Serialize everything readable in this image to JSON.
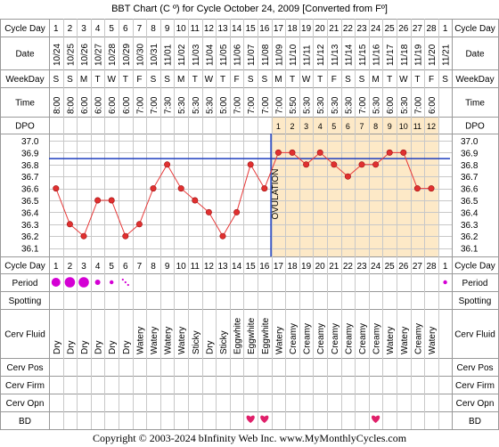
{
  "title": "BBT Chart (C º) for Cycle October 24, 2009  [Converted from Fº]",
  "footer": "Copyright © 2003-2024 bInfinity Web Inc.    www.MyMonthlyCycles.com",
  "labels": {
    "cycle_day": "Cycle Day",
    "date": "Date",
    "weekday": "WeekDay",
    "time": "Time",
    "dpo": "DPO",
    "period": "Period",
    "spotting": "Spotting",
    "cerv_fluid": "Cerv Fluid",
    "cerv_pos": "Cerv Pos",
    "cerv_firm": "Cerv Firm",
    "cerv_opn": "Cerv Opn",
    "bd": "BD",
    "ovulation": "OVULATION"
  },
  "colors": {
    "grid": "#c8c8c8",
    "line": "#e83a3a",
    "point_fill": "#e03030",
    "coverline": "#1f3fbf",
    "luteal_bg": "#fde9c7",
    "period": "#d400d4",
    "heart": "#e0206a"
  },
  "cycle_days": [
    "1",
    "2",
    "3",
    "4",
    "5",
    "6",
    "7",
    "8",
    "9",
    "10",
    "11",
    "12",
    "13",
    "14",
    "15",
    "16",
    "17",
    "18",
    "19",
    "20",
    "21",
    "22",
    "23",
    "24",
    "25",
    "26",
    "27",
    "28",
    "1"
  ],
  "dates": [
    "10/24",
    "10/25",
    "10/26",
    "10/27",
    "10/28",
    "10/29",
    "10/30",
    "10/31",
    "11/01",
    "11/02",
    "11/03",
    "11/04",
    "11/05",
    "11/06",
    "11/07",
    "11/08",
    "11/09",
    "11/10",
    "11/11",
    "11/12",
    "11/13",
    "11/14",
    "11/15",
    "11/16",
    "11/17",
    "11/18",
    "11/19",
    "11/20",
    "11/21"
  ],
  "weekdays": [
    "S",
    "S",
    "M",
    "T",
    "W",
    "T",
    "F",
    "S",
    "S",
    "M",
    "T",
    "W",
    "T",
    "F",
    "S",
    "S",
    "M",
    "T",
    "W",
    "T",
    "F",
    "S",
    "S",
    "M",
    "T",
    "W",
    "T",
    "F",
    "S"
  ],
  "times": [
    "8:00",
    "8:00",
    "6:00",
    "6:00",
    "6:00",
    "6:00",
    "7:00",
    "7:00",
    "7:30",
    "5:30",
    "5:30",
    "5:30",
    "5:00",
    "7:00",
    "7:00",
    "7:00",
    "7:00",
    "5:50",
    "5:30",
    "5:30",
    "5:30",
    "5:30",
    "7:00",
    "5:30",
    "6:00",
    "5:30",
    "7:00",
    "6:00",
    ""
  ],
  "dpo": [
    "",
    "",
    "",
    "",
    "",
    "",
    "",
    "",
    "",
    "",
    "",
    "",
    "",
    "",
    "",
    "",
    "1",
    "2",
    "3",
    "4",
    "5",
    "6",
    "7",
    "8",
    "9",
    "10",
    "11",
    "12",
    ""
  ],
  "cerv_fluid": [
    "Dry",
    "Dry",
    "Dry",
    "Dry",
    "Dry",
    "Dry",
    "Watery",
    "Watery",
    "Watery",
    "Watery",
    "Sticky",
    "Dry",
    "Sticky",
    "Eggwhite",
    "Eggwhite",
    "Eggwhite",
    "Watery",
    "Creamy",
    "Creamy",
    "Creamy",
    "Creamy",
    "Creamy",
    "Creamy",
    "Creamy",
    "Watery",
    "Watery",
    "Creamy",
    "Watery",
    ""
  ],
  "period": [
    3,
    4,
    4,
    2,
    1,
    0.5,
    0,
    0,
    0,
    0,
    0,
    0,
    0,
    0,
    0,
    0,
    0,
    0,
    0,
    0,
    0,
    0,
    0,
    0,
    0,
    0,
    0,
    0,
    1
  ],
  "bd": [
    0,
    0,
    0,
    0,
    0,
    0,
    0,
    0,
    0,
    0,
    0,
    0,
    0,
    0,
    1,
    1,
    0,
    0,
    0,
    0,
    0,
    0,
    0,
    1,
    0,
    0,
    0,
    0,
    0
  ],
  "chart_data": {
    "type": "line",
    "x": [
      "1",
      "2",
      "3",
      "4",
      "5",
      "6",
      "7",
      "8",
      "9",
      "10",
      "11",
      "12",
      "13",
      "14",
      "15",
      "16",
      "17",
      "18",
      "19",
      "20",
      "21",
      "22",
      "23",
      "24",
      "25",
      "26",
      "27",
      "28",
      "1"
    ],
    "series": [
      {
        "values": [
          36.6,
          36.3,
          36.2,
          36.5,
          36.5,
          36.2,
          36.3,
          36.6,
          36.8,
          36.6,
          36.5,
          36.4,
          36.2,
          36.4,
          36.8,
          36.6,
          36.9,
          36.9,
          36.8,
          36.9,
          36.8,
          36.7,
          36.8,
          36.8,
          36.9,
          36.9,
          36.6,
          36.6,
          null
        ]
      }
    ],
    "yticks": [
      "37.0",
      "36.9",
      "36.8",
      "36.7",
      "36.6",
      "36.5",
      "36.4",
      "36.3",
      "36.2",
      "36.1"
    ],
    "ylim": [
      36.1,
      37.0
    ],
    "coverline": 36.85,
    "ovulation_day": 16,
    "grid": true
  }
}
